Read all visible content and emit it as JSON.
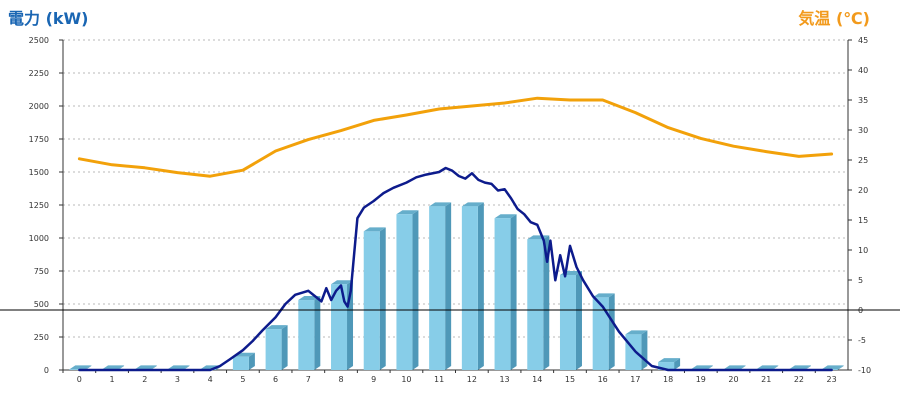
{
  "header": {
    "left_title": "電力 (kW)",
    "right_title": "気温 (℃)"
  },
  "chart_data": {
    "type": "bar",
    "categories": [
      "0",
      "1",
      "2",
      "3",
      "4",
      "5",
      "6",
      "7",
      "8",
      "9",
      "10",
      "11",
      "12",
      "13",
      "14",
      "15",
      "16",
      "17",
      "18",
      "19",
      "20",
      "21",
      "22",
      "23"
    ],
    "y_left": {
      "label": "電力 (kW)",
      "lim": [
        0,
        2500
      ],
      "ticks": [
        0,
        250,
        500,
        750,
        1000,
        1250,
        1500,
        1750,
        2000,
        2250,
        2500
      ]
    },
    "y_right": {
      "label": "気温 (℃)",
      "lim": [
        -10,
        45
      ],
      "ticks": [
        -10,
        -5,
        0,
        5,
        10,
        15,
        20,
        25,
        30,
        35,
        40,
        45
      ]
    },
    "grid": true,
    "series": [
      {
        "type": "bar",
        "axis": "left",
        "color": "#87cde8",
        "values": [
          5,
          5,
          5,
          5,
          5,
          100,
          310,
          530,
          650,
          1050,
          1180,
          1240,
          1240,
          1150,
          990,
          720,
          550,
          270,
          60,
          5,
          5,
          5,
          5,
          5
        ]
      },
      {
        "type": "line",
        "axis": "left",
        "color": "#0d1b8c",
        "x": [
          0,
          1,
          2,
          3,
          4,
          4.3,
          4.6,
          5,
          5.3,
          5.6,
          6,
          6.3,
          6.6,
          7,
          7.2,
          7.4,
          7.55,
          7.7,
          7.85,
          8,
          8.1,
          8.2,
          8.3,
          8.5,
          8.7,
          9,
          9.3,
          9.6,
          10,
          10.3,
          10.6,
          11,
          11.2,
          11.4,
          11.6,
          11.8,
          12,
          12.2,
          12.4,
          12.6,
          12.8,
          13,
          13.2,
          13.4,
          13.6,
          13.8,
          14,
          14.2,
          14.3,
          14.4,
          14.55,
          14.7,
          14.85,
          15,
          15.2,
          15.4,
          15.7,
          16,
          16.5,
          17,
          17.5,
          18,
          19,
          20,
          21,
          22,
          23
        ],
        "values": [
          0,
          0,
          0,
          0,
          0,
          30,
          80,
          150,
          220,
          300,
          400,
          500,
          570,
          600,
          560,
          520,
          620,
          530,
          600,
          640,
          520,
          480,
          600,
          1150,
          1230,
          1280,
          1340,
          1380,
          1420,
          1460,
          1480,
          1500,
          1530,
          1510,
          1470,
          1450,
          1490,
          1440,
          1420,
          1410,
          1360,
          1370,
          1300,
          1220,
          1180,
          1120,
          1100,
          980,
          820,
          980,
          680,
          870,
          710,
          940,
          780,
          680,
          560,
          480,
          290,
          140,
          30,
          0,
          0,
          0,
          0,
          0,
          0
        ]
      },
      {
        "type": "line",
        "axis": "right",
        "color": "#f2a10a",
        "values": [
          25.2,
          24.2,
          23.7,
          22.9,
          22.3,
          23.3,
          26.5,
          28.4,
          29.9,
          31.6,
          32.5,
          33.5,
          34.0,
          34.5,
          35.3,
          35.0,
          35.0,
          32.9,
          30.4,
          28.6,
          27.3,
          26.4,
          25.6,
          26.0
        ]
      },
      {
        "type": "hline",
        "axis": "right",
        "color": "#000000",
        "value": 0
      }
    ]
  }
}
